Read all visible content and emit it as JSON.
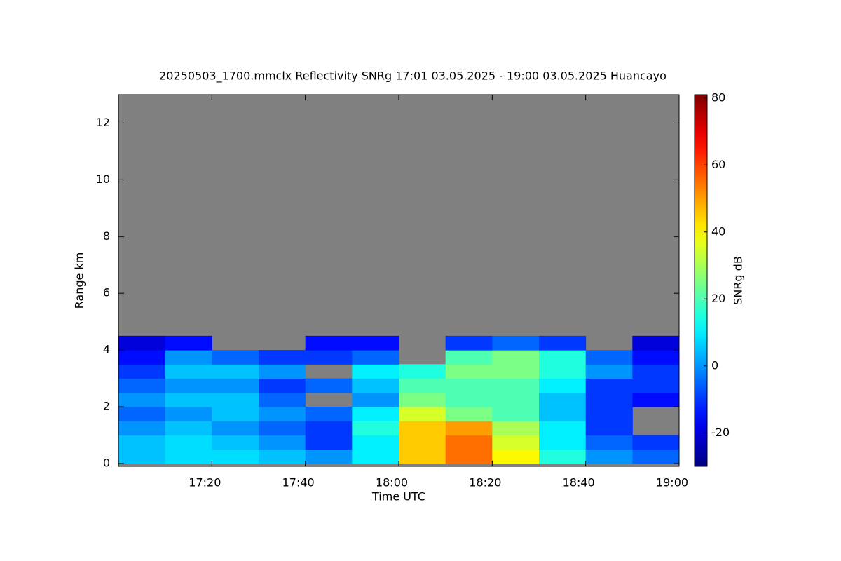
{
  "chart_data": {
    "type": "heatmap",
    "title": "20250503_1700.mmclx Reflectivity SNRg   17:01 03.05.2025 - 19:00 03.05.2025 Huancayo",
    "x_label": "Time UTC",
    "y_label": "Range km",
    "colorbar_label": "SNRg dB",
    "colormap": "jet",
    "nodata_color": "#808080",
    "xlim": [
      1020,
      1140
    ],
    "xticks": [
      {
        "value": 1040,
        "label": "17:20"
      },
      {
        "value": 1060,
        "label": "17:40"
      },
      {
        "value": 1080,
        "label": "18:00"
      },
      {
        "value": 1100,
        "label": "18:20"
      },
      {
        "value": 1120,
        "label": "18:40"
      },
      {
        "value": 1140,
        "label": "19:00"
      }
    ],
    "ylim": [
      -0.1,
      13
    ],
    "yticks": [
      0,
      2,
      4,
      6,
      8,
      10,
      12
    ],
    "zlim": [
      -30,
      81
    ],
    "zticks": [
      -20,
      0,
      20,
      40,
      60,
      80
    ],
    "x": [
      1025,
      1035,
      1045,
      1055,
      1065,
      1075,
      1085,
      1095,
      1105,
      1115,
      1125,
      1135
    ],
    "y": [
      0.25,
      0.75,
      1.25,
      1.75,
      2.25,
      2.75,
      3.25,
      3.75,
      4.25
    ],
    "z": [
      [
        5,
        8,
        8,
        5,
        0,
        10,
        45,
        55,
        40,
        15,
        0,
        -5
      ],
      [
        5,
        8,
        5,
        0,
        -10,
        10,
        45,
        55,
        35,
        10,
        -5,
        -10
      ],
      [
        0,
        5,
        0,
        -5,
        -10,
        15,
        45,
        50,
        30,
        10,
        -10,
        null
      ],
      [
        -5,
        0,
        5,
        0,
        -5,
        10,
        35,
        25,
        20,
        5,
        -10,
        null
      ],
      [
        0,
        5,
        5,
        -5,
        null,
        0,
        25,
        20,
        20,
        5,
        -10,
        -15
      ],
      [
        -5,
        0,
        0,
        -10,
        -5,
        5,
        20,
        20,
        20,
        10,
        -10,
        -10
      ],
      [
        -10,
        5,
        5,
        0,
        null,
        10,
        15,
        25,
        25,
        15,
        0,
        -10
      ],
      [
        -15,
        0,
        -5,
        -10,
        -10,
        -5,
        null,
        20,
        25,
        15,
        -5,
        -15
      ],
      [
        -20,
        -15,
        null,
        null,
        -15,
        -15,
        null,
        -10,
        -5,
        -10,
        null,
        -20
      ]
    ]
  }
}
